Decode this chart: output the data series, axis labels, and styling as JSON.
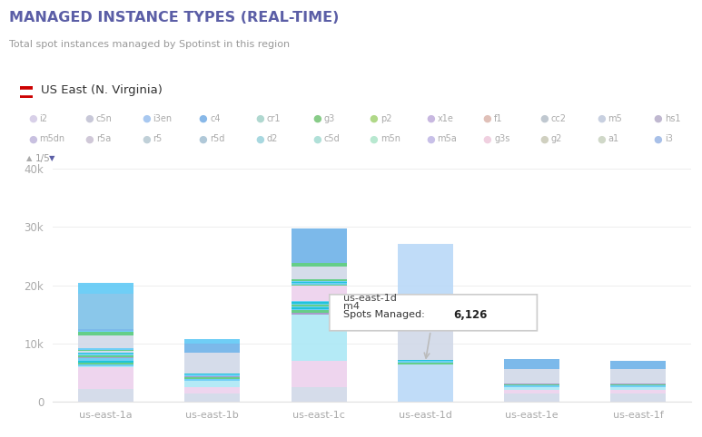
{
  "title": "MANAGED INSTANCE TYPES (REAL-TIME)",
  "subtitle": "Total spot instances managed by Spotinst in this region",
  "region_label": "US East (N. Virginia)",
  "categories": [
    "us-east-1a",
    "us-east-1b",
    "us-east-1c",
    "us-east-1d",
    "us-east-1e",
    "us-east-1f"
  ],
  "legend_row1": [
    "i2",
    "c5n",
    "i3en",
    "c4",
    "cr1",
    "g3",
    "p2",
    "x1e",
    "f1",
    "cc2",
    "m5",
    "hs1"
  ],
  "legend_row2": [
    "m5dn",
    "r5a",
    "r5",
    "r5d",
    "d2",
    "c5d",
    "m5n",
    "m5a",
    "g3s",
    "g2",
    "a1",
    "i3"
  ],
  "ylim": [
    0,
    40000
  ],
  "yticks": [
    0,
    10000,
    20000,
    30000,
    40000
  ],
  "ytick_labels": [
    "0",
    "10k",
    "20k",
    "30k",
    "40k"
  ],
  "background_color": "#ffffff",
  "title_color": "#5b5ea6",
  "subtitle_color": "#999999",
  "tooltip": {
    "region": "us-east-1d",
    "type": "m4",
    "value": "6,126"
  },
  "stacked_values": {
    "us-east-1a": [
      2300,
      3600,
      200,
      300,
      350,
      300,
      400,
      250,
      300,
      250,
      200,
      300,
      200,
      300,
      2200,
      500,
      200,
      300,
      6000,
      2000
    ],
    "us-east-1b": [
      1500,
      1000,
      1200,
      300,
      200,
      250,
      200,
      150,
      200,
      3500,
      1500,
      700
    ],
    "us-east-1c": [
      2500,
      4500,
      8000,
      300,
      400,
      200,
      300,
      150,
      300,
      200,
      300,
      200,
      2500,
      300,
      200,
      200,
      200,
      300,
      2200,
      500,
      6000
    ],
    "us-east-1d": [
      6500,
      300,
      200,
      200,
      7000,
      3000,
      9800
    ],
    "us-east-1e": [
      1500,
      600,
      400,
      300,
      200,
      200,
      2500,
      1600
    ],
    "us-east-1f": [
      1500,
      600,
      400,
      300,
      200,
      200,
      2400,
      1500
    ]
  },
  "segment_colors": {
    "us-east-1a": [
      "#d0d8e8",
      "#ecd0ec",
      "#aae8f5",
      "#5bc8f5",
      "#50c878",
      "#00bcd4",
      "#5bc8f5",
      "#9b8ec4",
      "#50c878",
      "#5bc8f5",
      "#00bcd4",
      "#d0d8e8",
      "#50c878",
      "#5bc8f5",
      "#d0d8e8",
      "#50c878",
      "#5bc8f5",
      "#6ab0e8",
      "#7ac0e8",
      "#5bc8f5"
    ],
    "us-east-1b": [
      "#d0d8e8",
      "#ecd0ec",
      "#aae8f5",
      "#5bc8f5",
      "#50c878",
      "#9b8ec4",
      "#5bc8f5",
      "#00bcd4",
      "#d0d8e8",
      "#d0d8e8",
      "#6ab0e8",
      "#5bc8f5"
    ],
    "us-east-1c": [
      "#d0d8e8",
      "#ecd0ec",
      "#aae8f5",
      "#9b8ec4",
      "#50c878",
      "#5bc8f5",
      "#00bcd4",
      "#5bc8f5",
      "#50c878",
      "#5bc8f5",
      "#00bcd4",
      "#5bc8f5",
      "#ecd0ec",
      "#50c878",
      "#5bc8f5",
      "#00bcd4",
      "#5bc8f5",
      "#50c878",
      "#d0d8e8",
      "#50c878",
      "#6ab0e8"
    ],
    "us-east-1d": [
      "#b8d8f8",
      "#50c878",
      "#5bc8f5",
      "#00bcd4",
      "#d0d8e8",
      "#6ab0e8",
      "#b8d8f8"
    ],
    "us-east-1e": [
      "#d0d8e8",
      "#ecd0ec",
      "#aae8f5",
      "#5bc8f5",
      "#50c878",
      "#9b8ec4",
      "#d0d8e8",
      "#6ab0e8"
    ],
    "us-east-1f": [
      "#d0d8e8",
      "#ecd0ec",
      "#aae8f5",
      "#5bc8f5",
      "#50c878",
      "#9b8ec4",
      "#d0d8e8",
      "#6ab0e8"
    ]
  },
  "legend_colors_row1": [
    "#d8d0e8",
    "#c8c8d8",
    "#a8c8f0",
    "#88b8e8",
    "#b0d8d0",
    "#88cc88",
    "#b0d888",
    "#c8b8e0",
    "#e0c0b8",
    "#c0c8d0",
    "#c8d0e0",
    "#c0b8d0"
  ],
  "legend_colors_row2": [
    "#c8c0e0",
    "#d0c8d8",
    "#c0d0d8",
    "#b0c8d8",
    "#a8d8e0",
    "#b0e0d8",
    "#b8e8d0",
    "#c8c0e8",
    "#f0d0e0",
    "#d0d0c0",
    "#d0d8c8",
    "#a8c0e8"
  ]
}
